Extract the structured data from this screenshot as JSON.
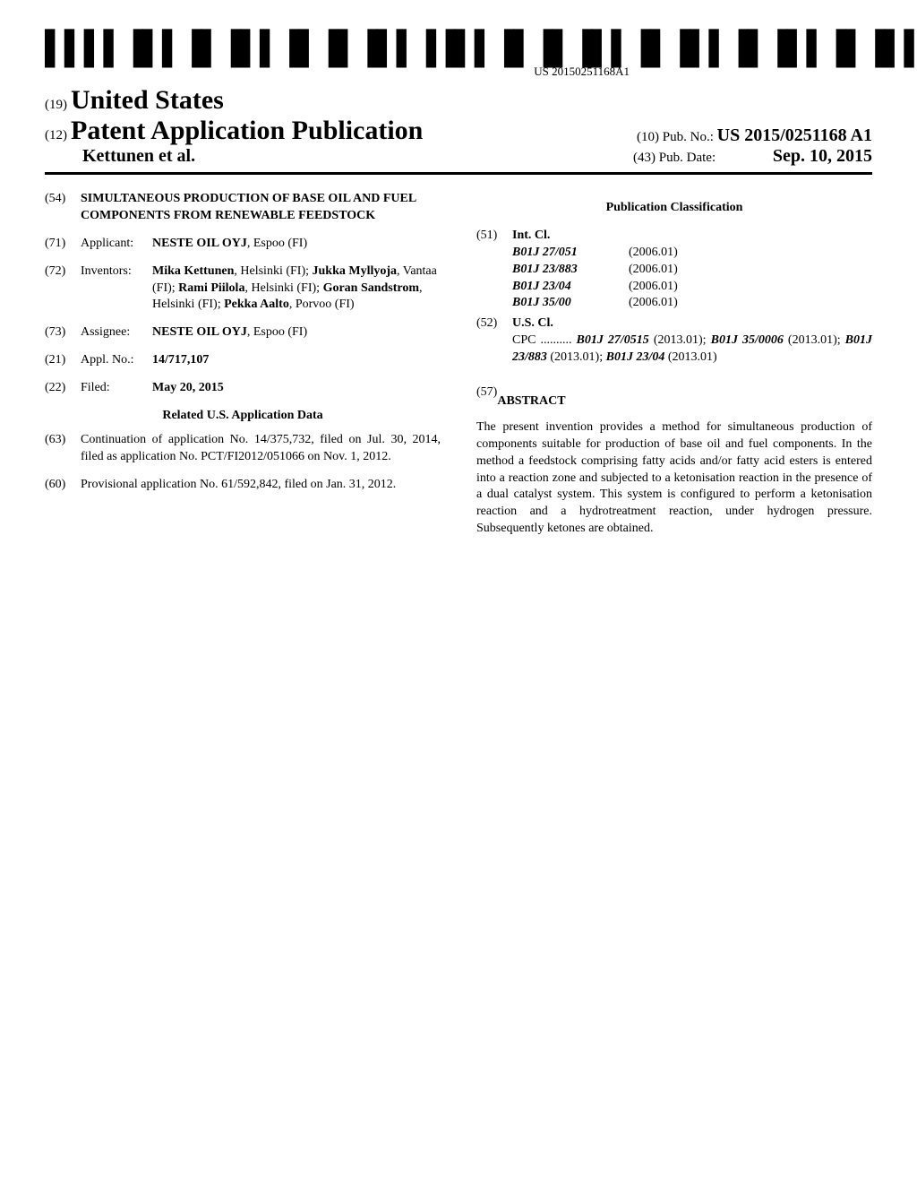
{
  "barcode": {
    "text": "US 20150251168A1"
  },
  "header": {
    "country_code": "(19)",
    "country": "United States",
    "pub_code": "(12)",
    "pub_type": "Patent Application Publication",
    "authors": "Kettunen et al.",
    "pubno_code": "(10)",
    "pubno_label": "Pub. No.:",
    "pubno": "US 2015/0251168 A1",
    "pubdate_code": "(43)",
    "pubdate_label": "Pub. Date:",
    "pubdate": "Sep. 10, 2015"
  },
  "left": {
    "title_code": "(54)",
    "title": "SIMULTANEOUS PRODUCTION OF BASE OIL AND FUEL COMPONENTS FROM RENEWABLE FEEDSTOCK",
    "applicant_code": "(71)",
    "applicant_label": "Applicant:",
    "applicant": "NESTE OIL OYJ",
    "applicant_loc": ", Espoo (FI)",
    "inventors_code": "(72)",
    "inventors_label": "Inventors:",
    "inventors_html": "Mika Kettunen|, Helsinki (FI); |Jukka Myllyoja|, Vantaa (FI); |Rami Piilola|, Helsinki (FI); |Goran Sandstrom|, Helsinki (FI); |Pekka Aalto|, Porvoo (FI)",
    "assignee_code": "(73)",
    "assignee_label": "Assignee:",
    "assignee": "NESTE OIL OYJ",
    "assignee_loc": ", Espoo (FI)",
    "applno_code": "(21)",
    "applno_label": "Appl. No.:",
    "applno": "14/717,107",
    "filed_code": "(22)",
    "filed_label": "Filed:",
    "filed": "May 20, 2015",
    "related_hdr": "Related U.S. Application Data",
    "cont_code": "(63)",
    "cont": "Continuation of application No. 14/375,732, filed on Jul. 30, 2014, filed as application No. PCT/FI2012/051066 on Nov. 1, 2012.",
    "prov_code": "(60)",
    "prov": "Provisional application No. 61/592,842, filed on Jan. 31, 2012."
  },
  "right": {
    "class_hdr": "Publication Classification",
    "intcl_code": "(51)",
    "intcl_label": "Int. Cl.",
    "intcl": [
      {
        "code": "B01J 27/051",
        "year": "(2006.01)"
      },
      {
        "code": "B01J 23/883",
        "year": "(2006.01)"
      },
      {
        "code": "B01J 23/04",
        "year": "(2006.01)"
      },
      {
        "code": "B01J 35/00",
        "year": "(2006.01)"
      }
    ],
    "uscl_code": "(52)",
    "uscl_label": "U.S. Cl.",
    "cpc_prefix": "CPC ..........",
    "cpc_parts": [
      {
        "b": "B01J 27/0515",
        "n": " (2013.01); "
      },
      {
        "b": "B01J 35/0006",
        "n": " (2013.01); "
      },
      {
        "b": "B01J 23/883",
        "n": " (2013.01); "
      },
      {
        "b": "B01J 23/04",
        "n": " (2013.01)"
      }
    ],
    "abs_code": "(57)",
    "abs_hdr": "ABSTRACT",
    "abs": "The present invention provides a method for simultaneous production of components suitable for production of base oil and fuel components. In the method a feedstock comprising fatty acids and/or fatty acid esters is entered into a reaction zone and subjected to a ketonisation reaction in the presence of a dual catalyst system. This system is configured to perform a ketonisation reaction and a hydrotreatment reaction, under hydrogen pressure. Subsequently ketones are obtained."
  }
}
